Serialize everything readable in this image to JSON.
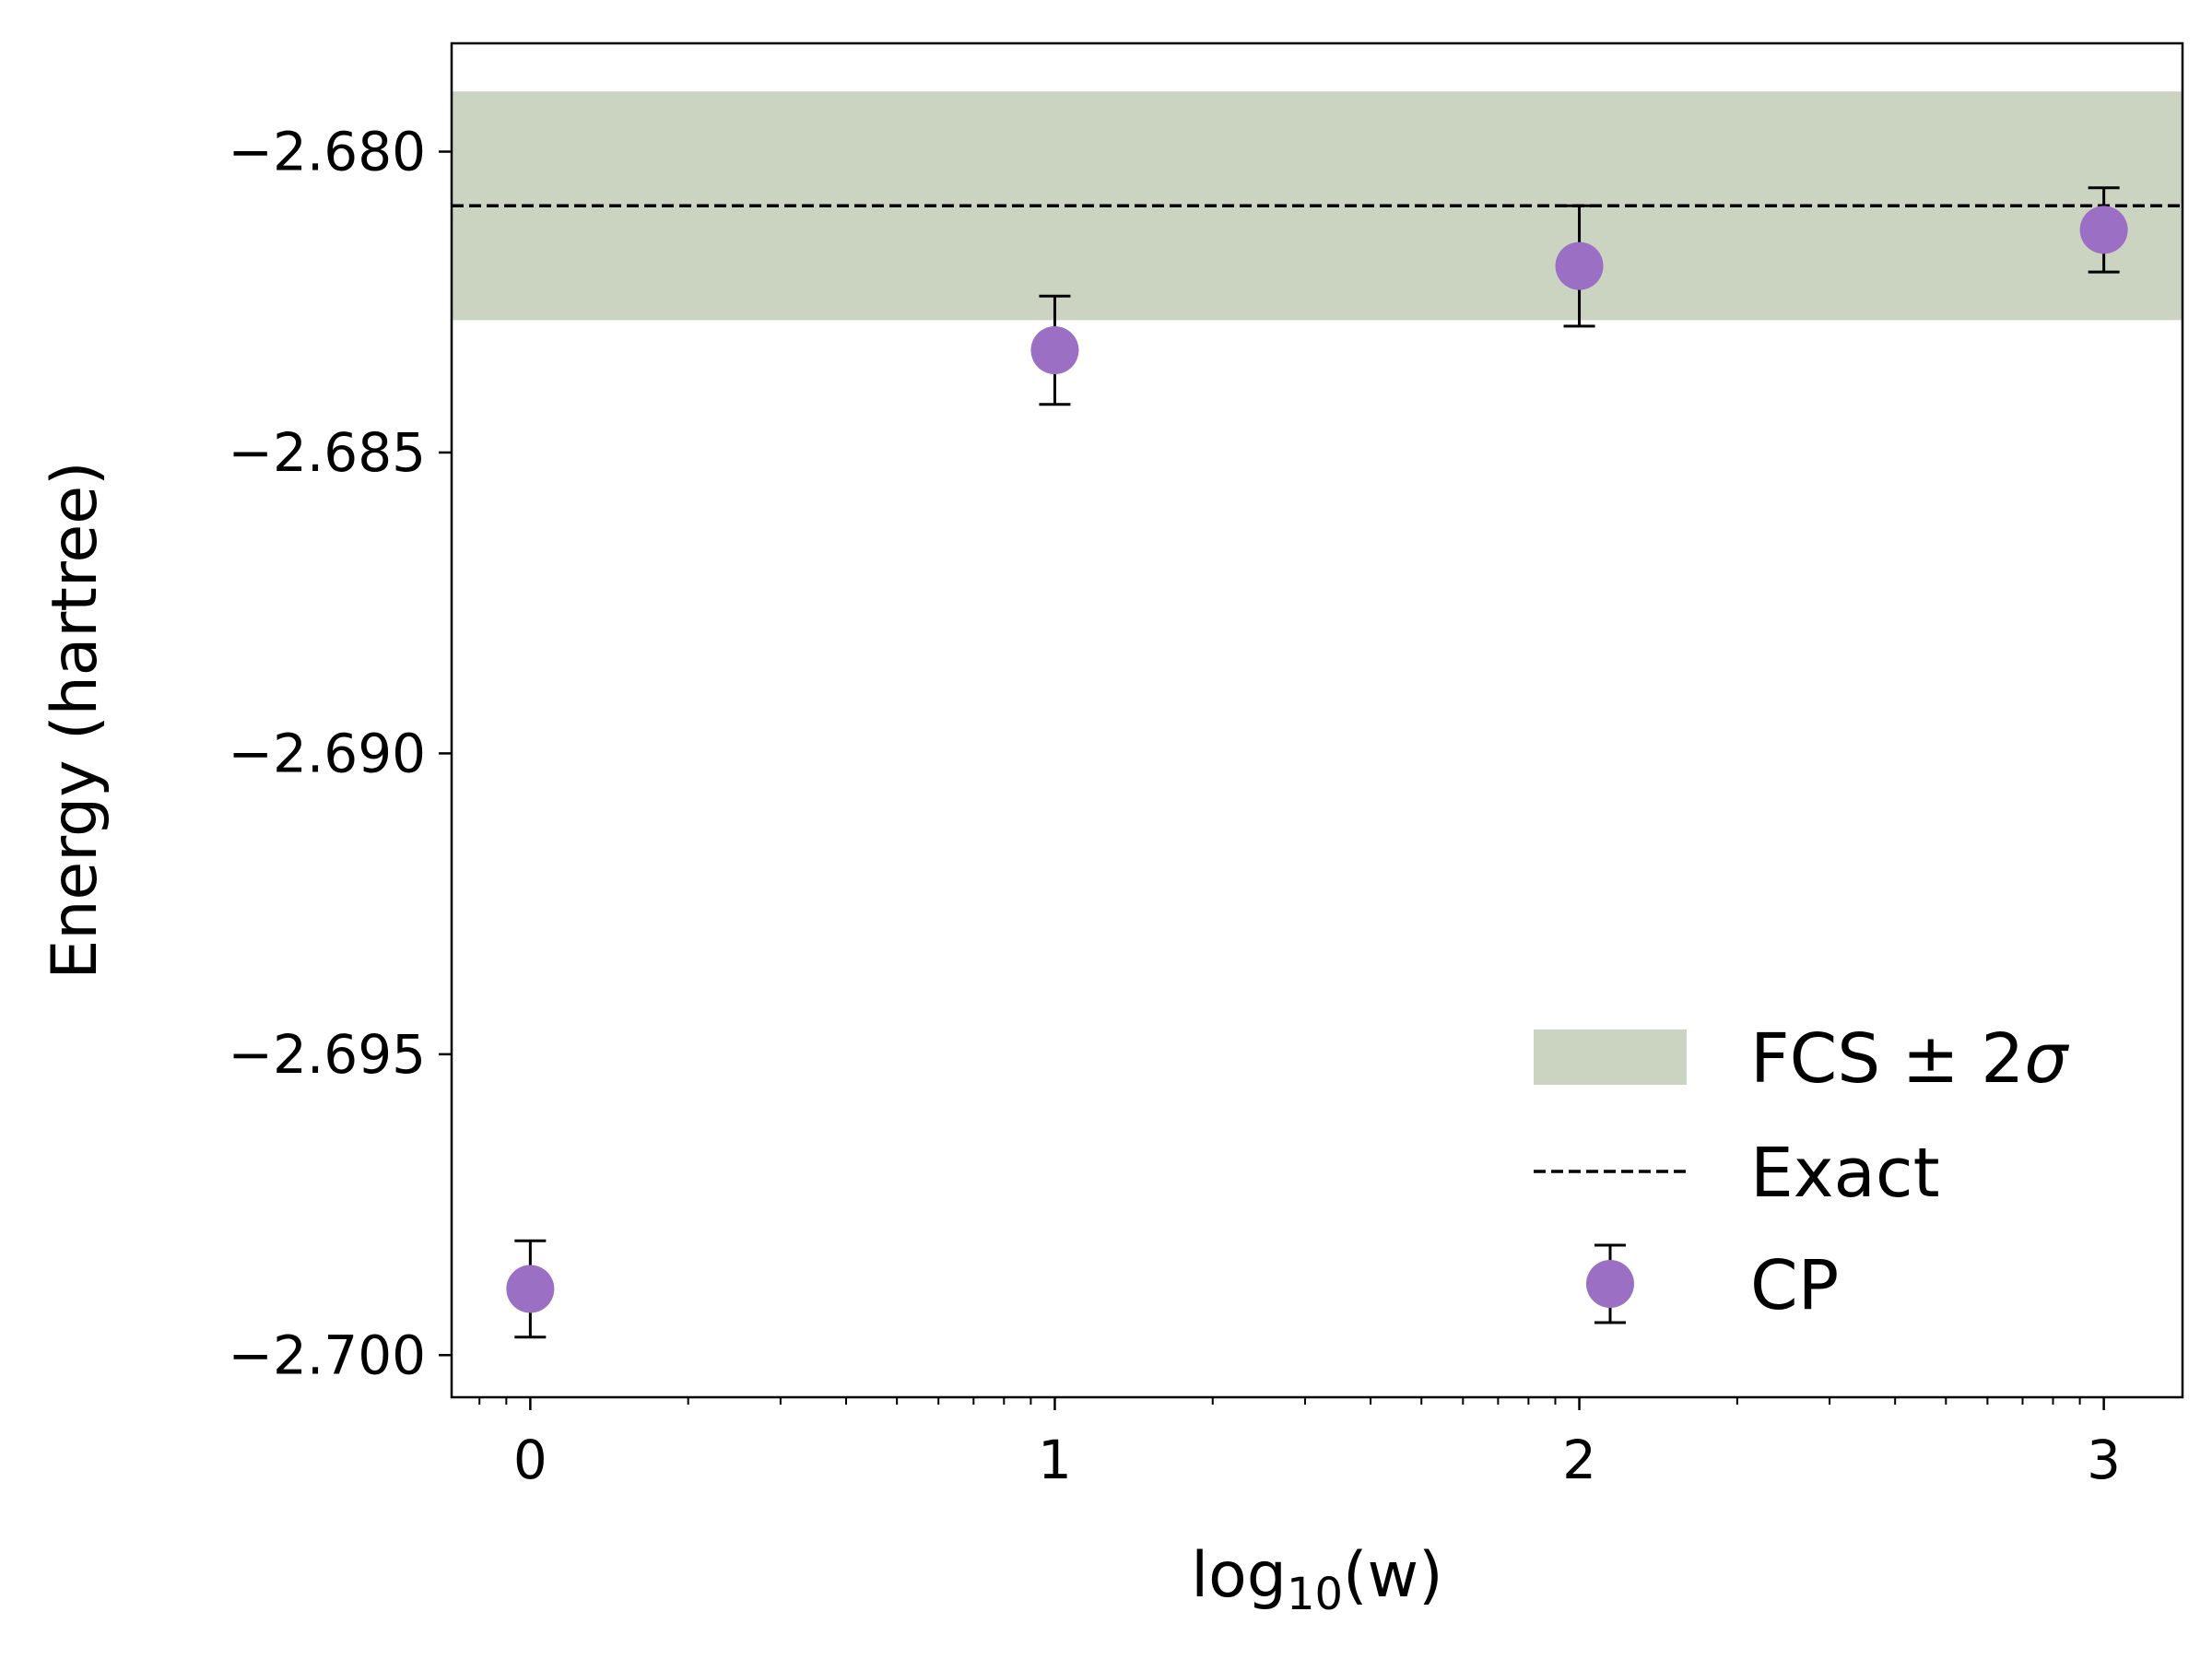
{
  "chart_data": {
    "type": "scatter",
    "xlabel_base": "log",
    "xlabel_sub": "10",
    "xlabel_rest": "(w)",
    "ylabel": "Energy (hartree)",
    "xlim": [
      -0.15,
      3.15
    ],
    "ylim": [
      -2.7007,
      -2.6782
    ],
    "x_ticks": [
      0,
      1,
      2,
      3
    ],
    "x_tick_labels": [
      "0",
      "1",
      "2",
      "3"
    ],
    "y_ticks": [
      -2.7,
      -2.695,
      -2.69,
      -2.685,
      -2.68
    ],
    "y_tick_labels": [
      "−2.700",
      "−2.695",
      "−2.690",
      "−2.685",
      "−2.680"
    ],
    "grid": false,
    "legend_position": "lower-right",
    "series": [
      {
        "name": "FCS ± 2σ",
        "kind": "band",
        "lower": -2.6828,
        "upper": -2.679,
        "color": "#cbd4c1"
      },
      {
        "name": "Exact",
        "kind": "hline",
        "y": -2.6809,
        "color": "#000000",
        "linestyle": "dashed"
      },
      {
        "name": "CP",
        "kind": "errorbar",
        "x": [
          0,
          1,
          2,
          3
        ],
        "y": [
          -2.6989,
          -2.6833,
          -2.6819,
          -2.6813
        ],
        "yerr": [
          0.0008,
          0.0009,
          0.001,
          0.0007
        ],
        "color": "#9b6fc4",
        "errorbar_color": "#000000"
      }
    ],
    "legend_entries": [
      {
        "label_prefix": "FCS ± 2",
        "label_symbol": "σ",
        "kind": "band"
      },
      {
        "label_prefix": "Exact",
        "label_symbol": "",
        "kind": "hline"
      },
      {
        "label_prefix": "CP",
        "label_symbol": "",
        "kind": "errorbar"
      }
    ]
  }
}
